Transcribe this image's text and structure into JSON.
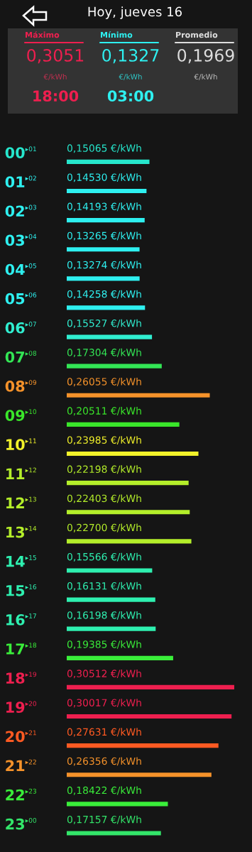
{
  "chart_data": {
    "type": "bar",
    "orientation": "horizontal",
    "title": "Hoy, jueves 16",
    "categories": [
      "00",
      "01",
      "02",
      "03",
      "04",
      "05",
      "06",
      "07",
      "08",
      "09",
      "10",
      "11",
      "12",
      "13",
      "14",
      "15",
      "16",
      "17",
      "18",
      "19",
      "20",
      "21",
      "22",
      "23"
    ],
    "values": [
      0.15065,
      0.1453,
      0.14193,
      0.13265,
      0.13274,
      0.14258,
      0.15527,
      0.17304,
      0.26055,
      0.20511,
      0.23985,
      0.22198,
      0.22403,
      0.227,
      0.15566,
      0.16131,
      0.16198,
      0.19385,
      0.30512,
      0.30017,
      0.27631,
      0.26356,
      0.18422,
      0.17157
    ],
    "colors": [
      "#26e6cc",
      "#2ef0f0",
      "#2ef0f0",
      "#2ef0f0",
      "#2ef0f0",
      "#2ef0f0",
      "#30eed0",
      "#33e655",
      "#f5922a",
      "#3ae62a",
      "#f2f22a",
      "#b4ee2a",
      "#b4ee2a",
      "#b4ee2a",
      "#2ef0b0",
      "#2ef0b0",
      "#2ef0b0",
      "#3aee3a",
      "#ee1f4f",
      "#ee1f4f",
      "#ff5a22",
      "#f5922a",
      "#3aee3a",
      "#33e66a"
    ],
    "value_labels": [
      "0,15065 €/kWh",
      "0,14530 €/kWh",
      "0,14193 €/kWh",
      "0,13265 €/kWh",
      "0,13274 €/kWh",
      "0,14258 €/kWh",
      "0,15527 €/kWh",
      "0,17304 €/kWh",
      "0,26055 €/kWh",
      "0,20511 €/kWh",
      "0,23985 €/kWh",
      "0,22198 €/kWh",
      "0,22403 €/kWh",
      "0,22700 €/kWh",
      "0,15566 €/kWh",
      "0,16131 €/kWh",
      "0,16198 €/kWh",
      "0,19385 €/kWh",
      "0,30512 €/kWh",
      "0,30017 €/kWh",
      "0,27631 €/kWh",
      "0,26356 €/kWh",
      "0,18422 €/kWh",
      "0,17157 €/kWh"
    ],
    "tick_labels": "y",
    "annotations": [
      "Máximo",
      "0,3051",
      "€/kWh",
      "18:00",
      "Mínimo",
      "0,1327",
      "€/kWh",
      "03:00",
      "Promedio",
      "0,1969",
      "€/kWh",
      "▸01",
      "▸02",
      "▸03",
      "▸04",
      "▸05",
      "▸06",
      "▸07",
      "▸08",
      "▸09",
      "▸10",
      "▸11",
      "▸12",
      "▸13",
      "▸14",
      "▸15",
      "▸16",
      "▸17",
      "▸18",
      "▸19",
      "▸20",
      "▸21",
      "▸22",
      "▸23",
      "▸00"
    ]
  }
}
